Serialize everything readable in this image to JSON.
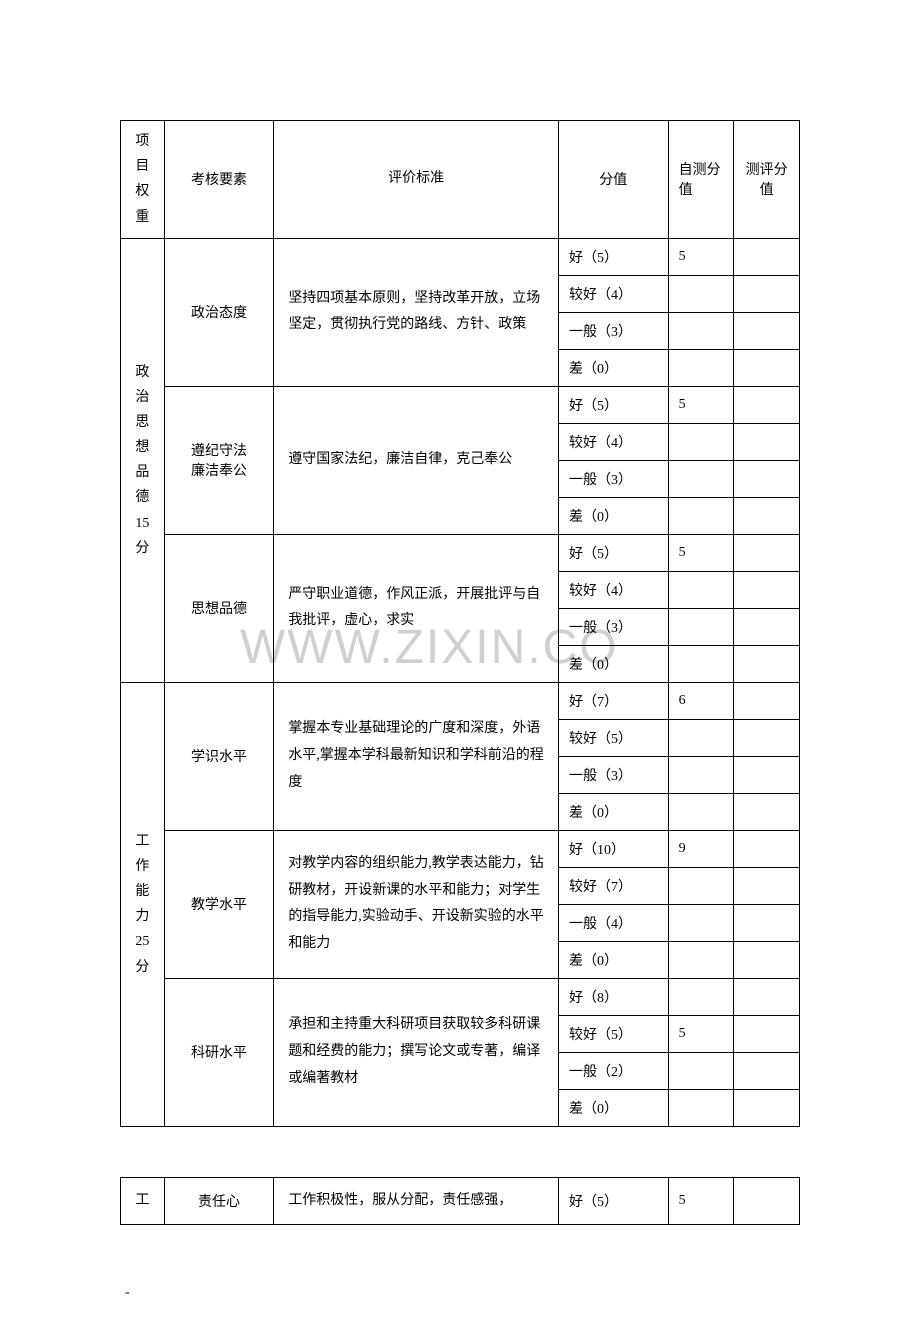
{
  "headers": {
    "col1": "项目权重",
    "col2": "考核要素",
    "col3": "评价标准",
    "col4": "分值",
    "col5": "自测分值",
    "col6": "测评分值"
  },
  "sections": [
    {
      "weight_label": "政治思想品德15分",
      "elements": [
        {
          "name": "政治态度",
          "standard": "坚持四项基本原则，坚持改革开放，立场坚定，贯彻执行党的路线、方针、政策",
          "scores": [
            {
              "label": "好（5）",
              "self": "5"
            },
            {
              "label": "较好（4）",
              "self": ""
            },
            {
              "label": "一般（3）",
              "self": ""
            },
            {
              "label": "差（0）",
              "self": ""
            }
          ]
        },
        {
          "name": "遵纪守法廉洁奉公",
          "standard": "遵守国家法纪，廉洁自律，克己奉公",
          "scores": [
            {
              "label": "好（5）",
              "self": "5"
            },
            {
              "label": "较好（4）",
              "self": ""
            },
            {
              "label": "一般（3）",
              "self": ""
            },
            {
              "label": "差（0）",
              "self": ""
            }
          ]
        },
        {
          "name": "思想品德",
          "standard": "严守职业道德，作风正派，开展批评与自我批评，虚心，求实",
          "scores": [
            {
              "label": "好（5）",
              "self": "5"
            },
            {
              "label": "较好（4）",
              "self": ""
            },
            {
              "label": "一般（3）",
              "self": ""
            },
            {
              "label": "差（0）",
              "self": ""
            }
          ]
        }
      ]
    },
    {
      "weight_label": "工作能力25分",
      "elements": [
        {
          "name": "学识水平",
          "standard": "掌握本专业基础理论的广度和深度，外语水平,掌握本学科最新知识和学科前沿的程度",
          "scores": [
            {
              "label": "好（7）",
              "self": "6"
            },
            {
              "label": "较好（5）",
              "self": ""
            },
            {
              "label": "一般（3）",
              "self": ""
            },
            {
              "label": "差（0）",
              "self": ""
            }
          ]
        },
        {
          "name": "教学水平",
          "standard": "对教学内容的组织能力,教学表达能力，钻研教材，开设新课的水平和能力；对学生的指导能力,实验动手、开设新实验的水平和能力",
          "scores": [
            {
              "label": "好（10）",
              "self": "9"
            },
            {
              "label": "较好（7）",
              "self": ""
            },
            {
              "label": "一般（4）",
              "self": ""
            },
            {
              "label": "差（0）",
              "self": ""
            }
          ]
        },
        {
          "name": "科研水平",
          "standard": "承担和主持重大科研项目获取较多科研课题和经费的能力；撰写论文或专著，编译或编著教材",
          "scores": [
            {
              "label": "好（8）",
              "self": ""
            },
            {
              "label": "较好（5）",
              "self": "5"
            },
            {
              "label": "一般（2）",
              "self": ""
            },
            {
              "label": "差（0）",
              "self": ""
            }
          ]
        }
      ]
    }
  ],
  "secondTable": {
    "weight": "工",
    "element": "责任心",
    "standard": "工作积极性，服从分配，责任感强，",
    "score": "好（5）",
    "self": "5"
  },
  "watermark": "WWW.ZIXIN.CO",
  "footerDash": "-"
}
